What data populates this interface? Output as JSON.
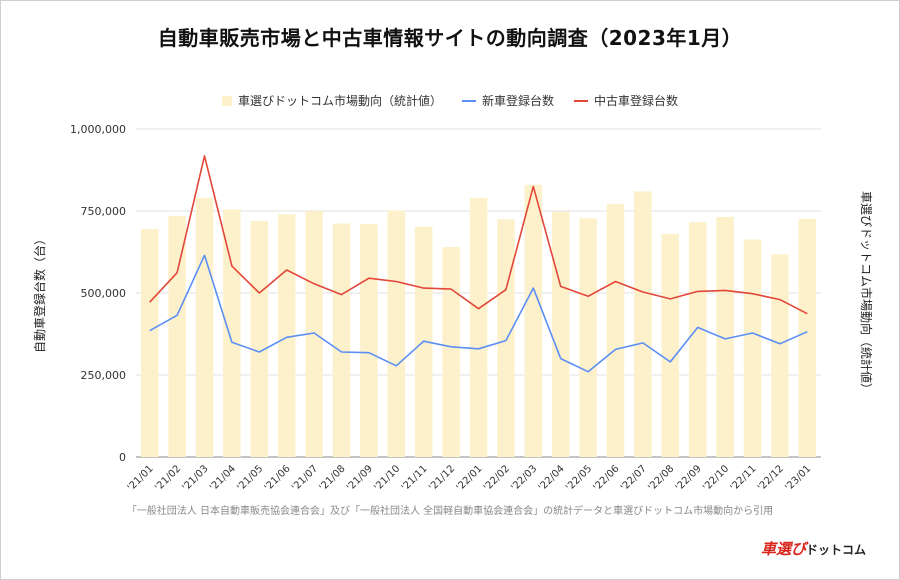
{
  "title": "自動車販売市場と中古車情報サイトの動向調査（2023年1月）",
  "source": "「一般社団法人 日本自動車販売協会連合会」及び「一般社団法人 全国軽自動車協会連合会」の統計データと車選びドットコム市場動向から引用",
  "brand": {
    "main": "車選び",
    "sub": "ドットコム"
  },
  "colors": {
    "bar": "#fdf1cc",
    "new": "#5b8ff5",
    "used": "#e2473a",
    "grid": "#e0e0e0"
  },
  "chart_data": {
    "type": "bar",
    "categories": [
      "'21/01",
      "'21/02",
      "'21/03",
      "'21/04",
      "'21/05",
      "'21/06",
      "'21/07",
      "'21/08",
      "'21/09",
      "'21/10",
      "'21/11",
      "'21/12",
      "'22/01",
      "'22/02",
      "'22/03",
      "'22/04",
      "'22/05",
      "'22/06",
      "'22/07",
      "'22/08",
      "'22/09",
      "'22/10",
      "'22/11",
      "'22/12",
      "'23/01"
    ],
    "series": [
      {
        "name": "車選びドットコム市場動向（統計値）",
        "type": "bar",
        "axis": "right",
        "values": [
          695000,
          735000,
          790000,
          755000,
          720000,
          740000,
          750000,
          712000,
          710000,
          752000,
          702000,
          640000,
          790000,
          725000,
          830000,
          748000,
          728000,
          772000,
          810000,
          680000,
          716000,
          732000,
          663000,
          618000,
          726000
        ]
      },
      {
        "name": "新車登録台数",
        "type": "line",
        "values": [
          385000,
          432000,
          615000,
          350000,
          320000,
          365000,
          378000,
          320000,
          318000,
          278000,
          353000,
          336000,
          330000,
          355000,
          515000,
          300000,
          260000,
          328000,
          348000,
          290000,
          395000,
          360000,
          378000,
          345000,
          382000
        ]
      },
      {
        "name": "中古車登録台数",
        "type": "line",
        "values": [
          472000,
          562000,
          918000,
          582000,
          500000,
          570000,
          528000,
          495000,
          545000,
          535000,
          515000,
          512000,
          452000,
          510000,
          825000,
          520000,
          490000,
          535000,
          503000,
          482000,
          505000,
          508000,
          498000,
          480000,
          437000
        ]
      }
    ],
    "ylabel": "自動車登録台数（台）",
    "y2label": "車選びドットコム市場動向（統計値）",
    "ylim": [
      0,
      1000000
    ],
    "yticks": [
      0,
      250000,
      500000,
      750000,
      1000000
    ],
    "ytick_labels": [
      "0",
      "250,000",
      "500,000",
      "750,000",
      "1,000,000"
    ],
    "grid": true,
    "legend": "top"
  }
}
